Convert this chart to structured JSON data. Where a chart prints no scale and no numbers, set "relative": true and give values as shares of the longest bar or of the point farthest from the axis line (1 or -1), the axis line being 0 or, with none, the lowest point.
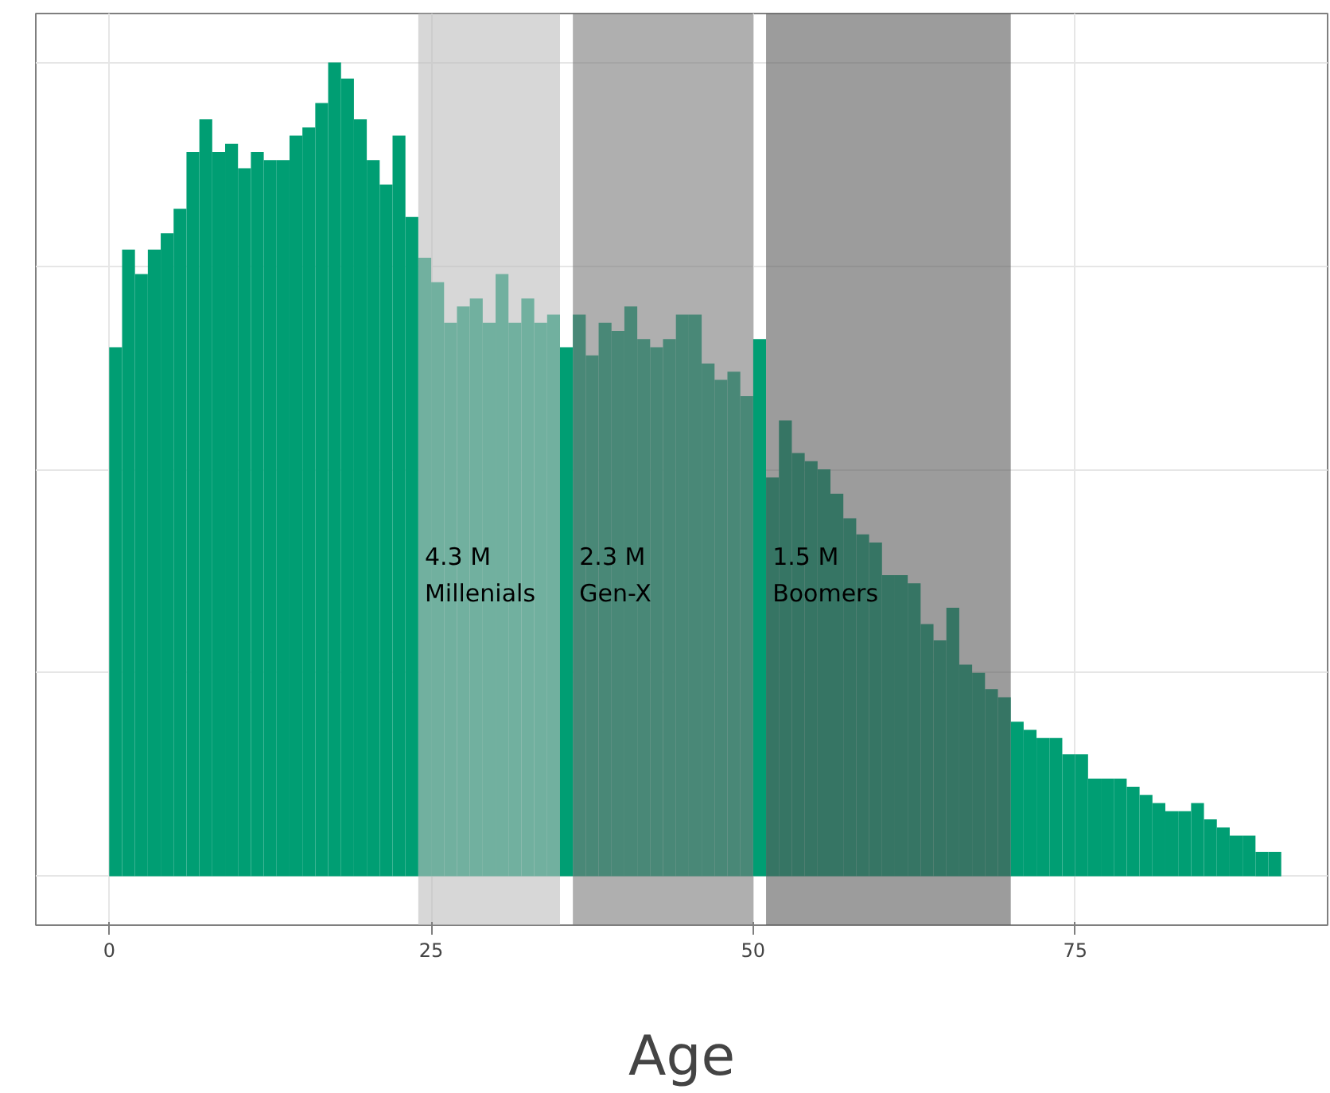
{
  "chart_data": {
    "type": "bar",
    "relative": true,
    "xlabel": "Age",
    "color": "#009e73",
    "x": [
      0.5,
      1.5,
      2.5,
      3.5,
      4.5,
      5.5,
      6.5,
      7.5,
      8.5,
      9.5,
      10.5,
      11.5,
      12.5,
      13.5,
      14.5,
      15.5,
      16.5,
      17.5,
      18.5,
      19.5,
      20.5,
      21.5,
      22.5,
      23.5,
      24.5,
      25.5,
      26.5,
      27.5,
      28.5,
      29.5,
      30.5,
      31.5,
      32.5,
      33.5,
      34.5,
      35.5,
      36.5,
      37.5,
      38.5,
      39.5,
      40.5,
      41.5,
      42.5,
      43.5,
      44.5,
      45.5,
      46.5,
      47.5,
      48.5,
      49.5,
      50.5,
      51.5,
      52.5,
      53.5,
      54.5,
      55.5,
      56.5,
      57.5,
      58.5,
      59.5,
      60.5,
      61.5,
      62.5,
      63.5,
      64.5,
      65.5,
      66.5,
      67.5,
      68.5,
      69.5,
      70.5,
      71.5,
      72.5,
      73.5,
      74.5,
      75.5,
      76.5,
      77.5,
      78.5,
      79.5,
      80.5,
      81.5,
      82.5,
      83.5,
      84.5,
      85.5,
      86.5,
      87.5,
      88.5,
      89.5,
      90.5
    ],
    "values": [
      0.65,
      0.77,
      0.74,
      0.77,
      0.79,
      0.82,
      0.89,
      0.93,
      0.89,
      0.9,
      0.87,
      0.89,
      0.88,
      0.88,
      0.91,
      0.92,
      0.95,
      1.0,
      0.98,
      0.93,
      0.88,
      0.85,
      0.91,
      0.81,
      0.76,
      0.73,
      0.68,
      0.7,
      0.71,
      0.68,
      0.74,
      0.68,
      0.71,
      0.68,
      0.69,
      0.65,
      0.69,
      0.64,
      0.68,
      0.67,
      0.7,
      0.66,
      0.65,
      0.66,
      0.69,
      0.69,
      0.63,
      0.61,
      0.62,
      0.59,
      0.66,
      0.49,
      0.56,
      0.52,
      0.51,
      0.5,
      0.47,
      0.44,
      0.42,
      0.41,
      0.37,
      0.37,
      0.36,
      0.31,
      0.29,
      0.33,
      0.26,
      0.25,
      0.23,
      0.22,
      0.19,
      0.18,
      0.17,
      0.17,
      0.15,
      0.15,
      0.12,
      0.12,
      0.12,
      0.11,
      0.1,
      0.09,
      0.08,
      0.08,
      0.09,
      0.07,
      0.06,
      0.05,
      0.05,
      0.03,
      0.03
    ],
    "xlim": [
      -5.7,
      94.6
    ],
    "xticks": [
      {
        "value": 0,
        "label": "0"
      },
      {
        "value": 25,
        "label": "25"
      },
      {
        "value": 50,
        "label": "50"
      },
      {
        "value": 75,
        "label": "75"
      }
    ],
    "grid": true,
    "bands": [
      {
        "axis": "x",
        "from": 24,
        "to": 35,
        "label": "4.3 M\nMillenials",
        "color": "#bdbdbd"
      },
      {
        "axis": "x",
        "from": 36,
        "to": 50,
        "label": "2.3 M\nGen-X",
        "color": "#7a7a7a"
      },
      {
        "axis": "x",
        "from": 51,
        "to": 70,
        "label": "1.5 M\nBoomers",
        "color": "#5a5a5a"
      }
    ]
  }
}
